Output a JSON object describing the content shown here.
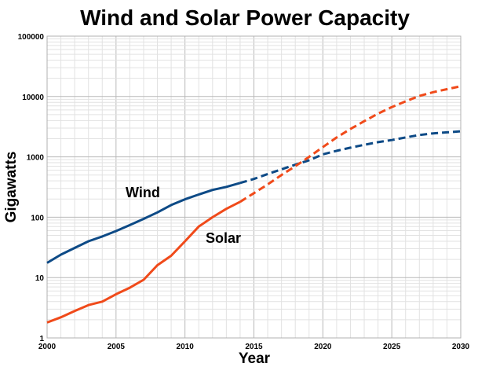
{
  "chart_data": {
    "type": "line",
    "title": "Wind and Solar Power Capacity",
    "xlabel": "Year",
    "ylabel": "Gigawatts",
    "xlim": [
      2000,
      2030
    ],
    "ylim": [
      1,
      100000
    ],
    "yscale": "log",
    "grid": true,
    "x_ticks": [
      "2000",
      "2005",
      "2010",
      "2015",
      "2020",
      "2025",
      "2030"
    ],
    "y_ticks": [
      "1",
      "10",
      "100",
      "1000",
      "10000",
      "100000"
    ],
    "projection_start": 2014,
    "x": [
      2000,
      2001,
      2002,
      2003,
      2004,
      2005,
      2006,
      2007,
      2008,
      2009,
      2010,
      2011,
      2012,
      2013,
      2014,
      2015,
      2016,
      2017,
      2018,
      2019,
      2020,
      2021,
      2022,
      2023,
      2024,
      2025,
      2026,
      2027,
      2028,
      2029,
      2030
    ],
    "series": [
      {
        "name": "Wind",
        "color": "#0d4a86",
        "values": [
          17.5,
          24,
          31,
          40,
          48,
          59,
          74,
          94,
          120,
          159,
          198,
          238,
          283,
          318,
          370,
          430,
          520,
          620,
          740,
          880,
          1100,
          1260,
          1420,
          1580,
          1750,
          1900,
          2100,
          2300,
          2450,
          2550,
          2650
        ]
      },
      {
        "name": "Solar",
        "color": "#f04a1a",
        "values": [
          1.8,
          2.2,
          2.8,
          3.5,
          4.0,
          5.3,
          6.8,
          9.2,
          16,
          23,
          40,
          70,
          100,
          138,
          180,
          250,
          350,
          500,
          700,
          1000,
          1450,
          2100,
          2900,
          3900,
          5200,
          6700,
          8300,
          10200,
          11800,
          13200,
          14800
        ]
      }
    ],
    "annotations": [
      {
        "text": "Wind",
        "series": "Wind"
      },
      {
        "text": "Solar",
        "series": "Solar"
      }
    ]
  }
}
